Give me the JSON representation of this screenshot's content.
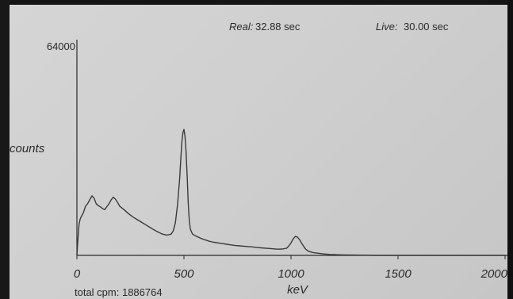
{
  "header": {
    "real_label": "Real:",
    "real_value": "32.88 sec",
    "live_label": "Live:",
    "live_value": "30.00 sec"
  },
  "footer": {
    "total_cpm": "total cpm: 1886764"
  },
  "colors": {
    "screen": "#d0d0d0",
    "ink": "#2a2a2a",
    "frame": "#141414"
  },
  "chart_data": {
    "type": "line",
    "title": "",
    "xlabel": "keV",
    "ylabel": "counts",
    "xlim": [
      0,
      2000
    ],
    "ylim": [
      0,
      64000
    ],
    "x_ticks": [
      0,
      500,
      1000,
      1500,
      2000
    ],
    "x_tick_labels": [
      "0",
      "500",
      "1000",
      "1500",
      "2000"
    ],
    "y_tick_labels": [
      "64000"
    ],
    "grid": false,
    "series": [
      {
        "x": [
          0,
          5,
          10,
          15,
          20,
          30,
          40,
          50,
          60,
          70,
          80,
          90,
          100,
          110,
          120,
          130,
          140,
          150,
          160,
          170,
          180,
          190,
          200,
          210,
          220,
          240,
          260,
          280,
          300,
          320,
          340,
          360,
          380,
          400,
          420,
          440,
          450,
          460,
          470,
          480,
          485,
          490,
          495,
          500,
          505,
          510,
          515,
          520,
          525,
          530,
          540,
          550,
          560,
          580,
          600,
          620,
          640,
          660,
          680,
          700,
          720,
          740,
          760,
          780,
          800,
          820,
          840,
          860,
          880,
          900,
          920,
          940,
          960,
          980,
          990,
          1000,
          1010,
          1020,
          1030,
          1040,
          1050,
          1060,
          1070,
          1080,
          1100,
          1120,
          1150,
          1180,
          1200,
          1220,
          1250,
          1300,
          1400,
          1500,
          1600,
          1800,
          2000
        ],
        "y": [
          0,
          5000,
          9500,
          11000,
          11800,
          13000,
          15000,
          15800,
          17000,
          18200,
          17500,
          15800,
          15200,
          14800,
          14300,
          14000,
          14900,
          15800,
          17000,
          17800,
          17200,
          16200,
          15000,
          14500,
          14000,
          12800,
          11800,
          11000,
          10200,
          9400,
          8600,
          7800,
          7100,
          6500,
          6200,
          6500,
          7500,
          10000,
          15500,
          23500,
          29000,
          34500,
          37500,
          38500,
          36500,
          31500,
          24000,
          16000,
          10500,
          8000,
          6500,
          6100,
          5800,
          5200,
          4700,
          4300,
          4000,
          3800,
          3600,
          3400,
          3200,
          3000,
          2900,
          2800,
          2700,
          2600,
          2400,
          2300,
          2200,
          2100,
          2000,
          1900,
          1950,
          2200,
          2900,
          3800,
          5000,
          5800,
          5600,
          4800,
          3700,
          2700,
          1800,
          1300,
          900,
          700,
          450,
          300,
          250,
          200,
          150,
          100,
          0,
          0,
          0,
          0,
          0
        ]
      }
    ]
  }
}
